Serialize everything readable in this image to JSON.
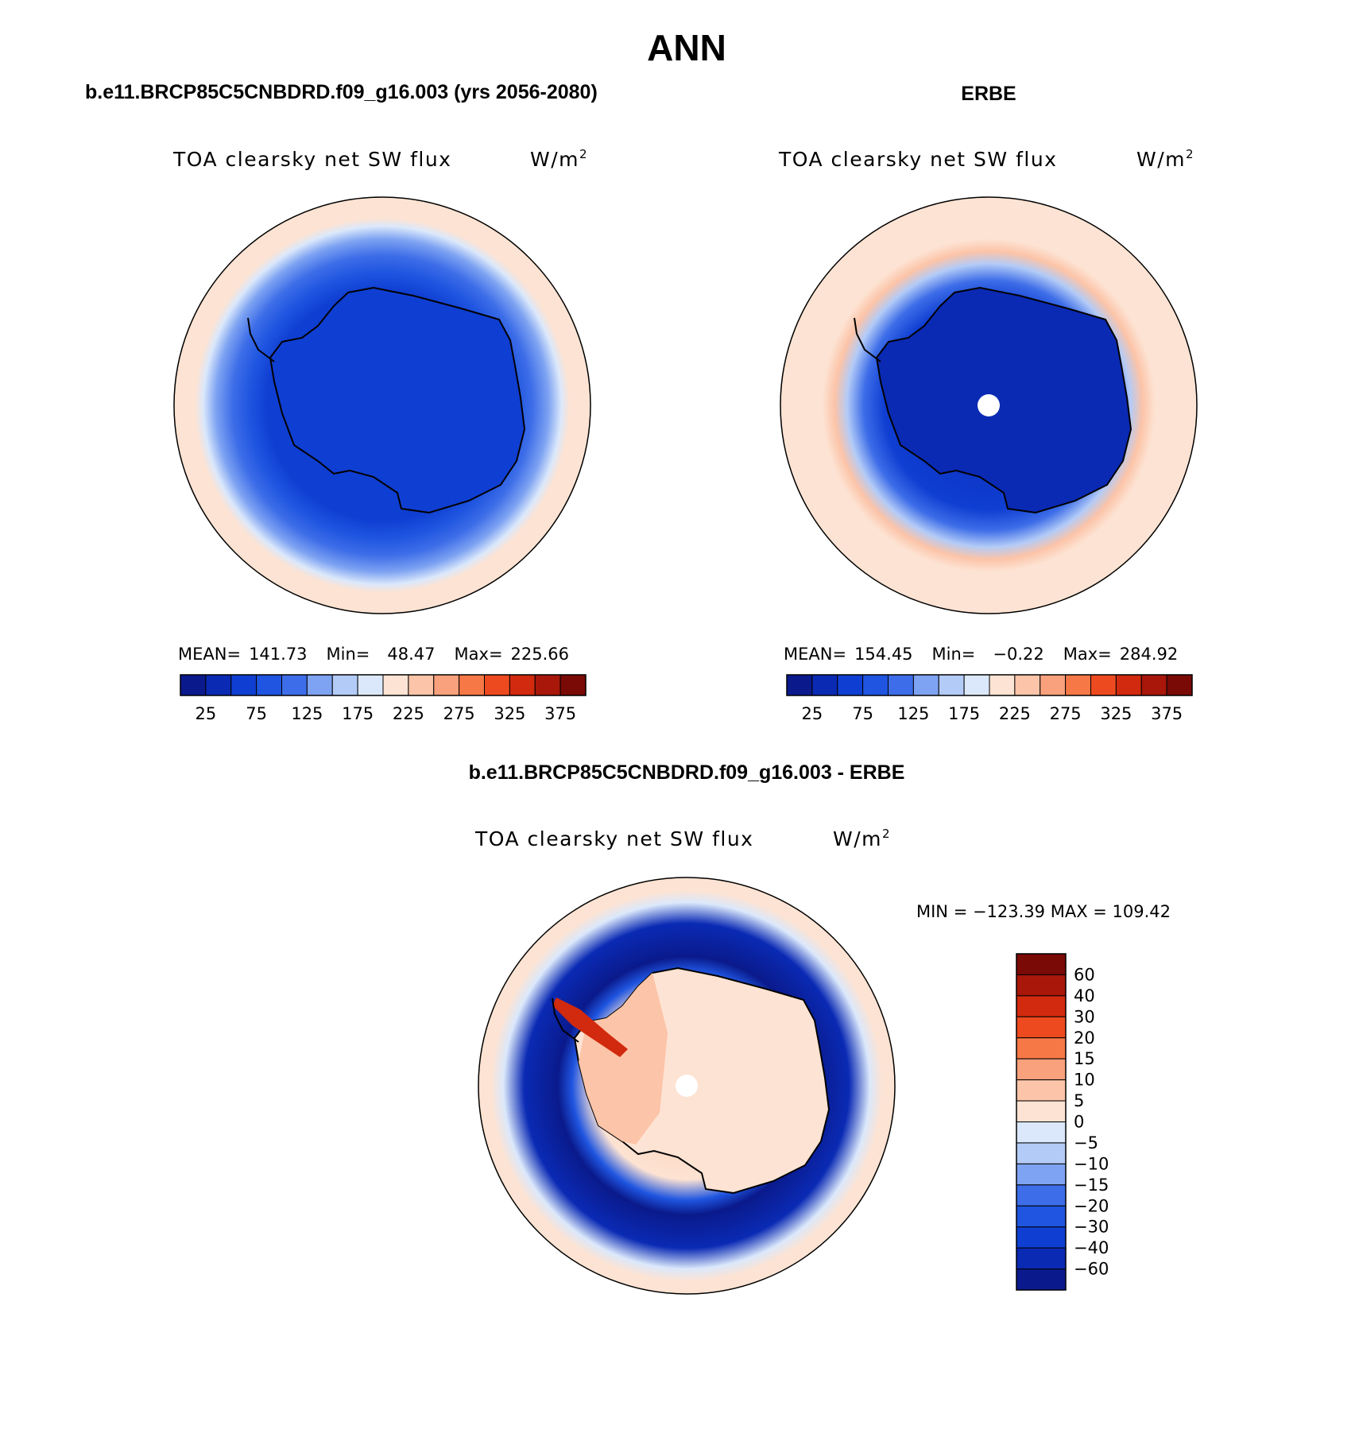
{
  "figure": {
    "title": "ANN",
    "panels": [
      {
        "id": "model",
        "header": "b.e11.BRCP85C5CNBDRD.f09_g16.003 (yrs 2056-2080)",
        "variable": "TOA clearsky net SW flux",
        "units": "W/m",
        "units_sup": "2",
        "stats": {
          "mean_label": "MEAN=",
          "mean": "141.73",
          "min_label": "Min=",
          "min": "48.47",
          "max_label": "Max=",
          "max": "225.66"
        },
        "has_pole_hole": false
      },
      {
        "id": "obs",
        "header": "ERBE",
        "variable": "TOA clearsky net SW flux",
        "units": "W/m",
        "units_sup": "2",
        "stats": {
          "mean_label": "MEAN=",
          "mean": "154.45",
          "min_label": "Min=",
          "min": "−0.22",
          "max_label": "Max=",
          "max": "284.92"
        },
        "has_pole_hole": true
      },
      {
        "id": "diff",
        "header": "b.e11.BRCP85C5CNBDRD.f09_g16.003 - ERBE",
        "variable": "TOA clearsky net SW flux",
        "units": "W/m",
        "units_sup": "2",
        "minmax_text": "MIN = −123.39 MAX = 109.42",
        "has_pole_hole": true
      }
    ]
  },
  "chart_data": [
    {
      "type": "heatmap",
      "projection": "south polar stereographic",
      "title": "TOA clearsky net SW flux",
      "units": "W/m2",
      "colorbar": {
        "orientation": "horizontal",
        "tick_labels": [
          "25",
          "75",
          "125",
          "175",
          "225",
          "275",
          "325",
          "375"
        ],
        "levels": [
          25,
          50,
          75,
          100,
          125,
          150,
          175,
          200,
          225,
          250,
          275,
          300,
          325,
          350,
          375
        ],
        "colors": [
          "#0a1a8c",
          "#0a2ab4",
          "#0f3ed2",
          "#1f55e0",
          "#3d6de8",
          "#7ea3f2",
          "#b3cbf7",
          "#dbe8fb",
          "#fde3d3",
          "#fcc4a8",
          "#f9a07c",
          "#f67846",
          "#ee4a1f",
          "#d12a0e",
          "#a8170a",
          "#7a0a06"
        ]
      },
      "mean": 141.73,
      "min": 48.47,
      "max": 225.66
    },
    {
      "type": "heatmap",
      "projection": "south polar stereographic",
      "title": "TOA clearsky net SW flux",
      "units": "W/m2",
      "colorbar": {
        "orientation": "horizontal",
        "tick_labels": [
          "25",
          "75",
          "125",
          "175",
          "225",
          "275",
          "325",
          "375"
        ],
        "levels": [
          25,
          50,
          75,
          100,
          125,
          150,
          175,
          200,
          225,
          250,
          275,
          300,
          325,
          350,
          375
        ]
      },
      "mean": 154.45,
      "min": -0.22,
      "max": 284.92
    },
    {
      "type": "heatmap",
      "projection": "south polar stereographic",
      "title": "TOA clearsky net SW flux",
      "units": "W/m2",
      "colorbar": {
        "orientation": "vertical",
        "tick_labels": [
          "60",
          "40",
          "30",
          "20",
          "15",
          "10",
          "5",
          "0",
          "−5",
          "−10",
          "−15",
          "−20",
          "−30",
          "−40",
          "−60"
        ],
        "levels": [
          60,
          40,
          30,
          20,
          15,
          10,
          5,
          0,
          -5,
          -10,
          -15,
          -20,
          -30,
          -40,
          -60
        ],
        "colors": [
          "#7a0a06",
          "#a8170a",
          "#d12a0e",
          "#ee4a1f",
          "#f67846",
          "#f9a07c",
          "#fcc4a8",
          "#fde3d3",
          "#dbe8fb",
          "#b3cbf7",
          "#7ea3f2",
          "#3d6de8",
          "#1f55e0",
          "#0f3ed2",
          "#0a2ab4",
          "#0a1a8c"
        ]
      },
      "min": -123.39,
      "max": 109.42
    }
  ]
}
